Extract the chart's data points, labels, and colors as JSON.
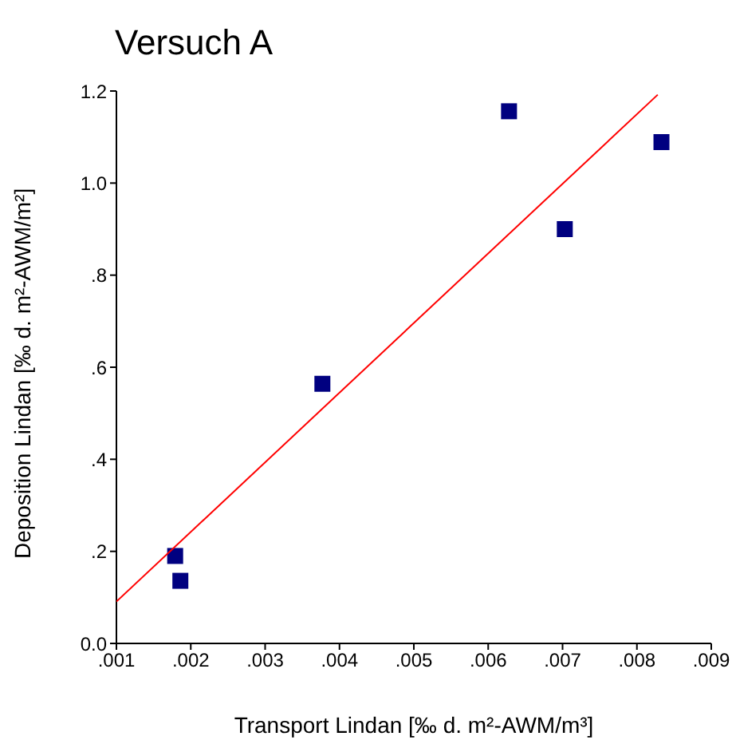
{
  "chart_data": {
    "type": "scatter",
    "title": "Versuch A",
    "xlabel": "Transport  Lindan [‰ d. m²-AWM/m³]",
    "ylabel": "Deposition Lindan [‰ d. m²-AWM/m²]",
    "xlim": [
      0.001,
      0.009
    ],
    "xticks": [
      {
        "value": 0.001,
        "label": ".001"
      },
      {
        "value": 0.002,
        "label": ".002"
      },
      {
        "value": 0.003,
        "label": ".003"
      },
      {
        "value": 0.004,
        "label": ".004"
      },
      {
        "value": 0.005,
        "label": ".005"
      },
      {
        "value": 0.006,
        "label": ".006"
      },
      {
        "value": 0.007,
        "label": ".007"
      },
      {
        "value": 0.008,
        "label": ".008"
      },
      {
        "value": 0.009,
        "label": ".009"
      }
    ],
    "ylim": [
      0,
      1.2
    ],
    "yticks": [
      {
        "value": 0,
        "label": "0.0"
      },
      {
        "value": 0.2,
        "label": ".2"
      },
      {
        "value": 0.4,
        "label": ".4"
      },
      {
        "value": 0.6,
        "label": ".6"
      },
      {
        "value": 0.8,
        "label": ".8"
      },
      {
        "value": 1.0,
        "label": "1.0"
      },
      {
        "value": 1.2,
        "label": "1.2"
      }
    ],
    "series": [
      {
        "marker": "square",
        "color": "#000080",
        "x": [
          0.00179,
          0.00186,
          0.00377,
          0.00628,
          0.00703,
          0.00833
        ],
        "values": [
          0.19,
          0.136,
          0.564,
          1.156,
          0.9,
          1.089
        ]
      },
      {
        "type": "line",
        "marker": "none",
        "color": "#ff0000",
        "x": [
          0.001,
          0.00828
        ],
        "values": [
          0.091,
          1.192
        ]
      }
    ]
  }
}
